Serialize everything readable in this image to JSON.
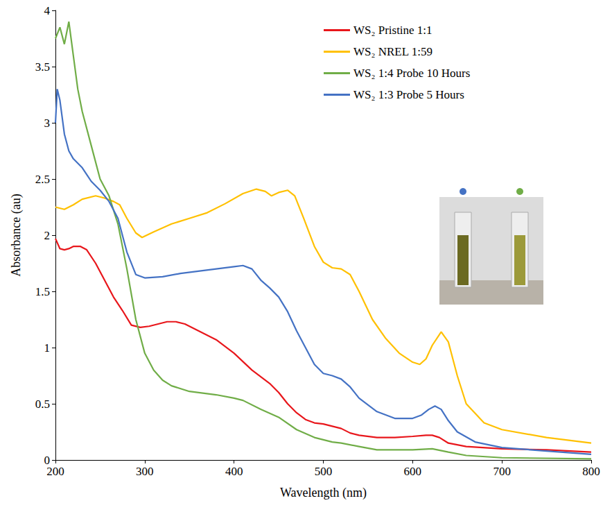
{
  "chart_data": {
    "type": "line",
    "x_label": "Wavelength (nm)",
    "y_label": "Absorbance (au)",
    "xlim": [
      200,
      800
    ],
    "xticks": [
      200,
      300,
      400,
      500,
      600,
      700,
      800
    ],
    "ylim": [
      0,
      4
    ],
    "yticks": [
      0,
      0.5,
      1,
      1.5,
      2,
      2.5,
      3,
      3.5,
      4
    ],
    "grid": false,
    "legend": "upper right",
    "series": [
      {
        "name": "WS₂ Pristine 1:1",
        "color": "#e8161b",
        "x": [
          200,
          205,
          210,
          215,
          220,
          228,
          235,
          245,
          255,
          265,
          275,
          285,
          295,
          305,
          315,
          325,
          335,
          345,
          360,
          380,
          400,
          420,
          440,
          450,
          460,
          470,
          480,
          490,
          500,
          510,
          520,
          530,
          540,
          560,
          580,
          600,
          615,
          622,
          630,
          640,
          660,
          700,
          750,
          800
        ],
        "values": [
          1.97,
          1.88,
          1.87,
          1.88,
          1.9,
          1.9,
          1.87,
          1.75,
          1.6,
          1.45,
          1.33,
          1.2,
          1.18,
          1.19,
          1.21,
          1.23,
          1.23,
          1.21,
          1.15,
          1.07,
          0.95,
          0.8,
          0.68,
          0.6,
          0.5,
          0.42,
          0.36,
          0.33,
          0.32,
          0.3,
          0.28,
          0.24,
          0.22,
          0.2,
          0.2,
          0.21,
          0.22,
          0.22,
          0.2,
          0.15,
          0.12,
          0.1,
          0.09,
          0.07
        ]
      },
      {
        "name": "WS₂ NREL 1:59",
        "color": "#ffc000",
        "x": [
          200,
          210,
          220,
          230,
          245,
          255,
          265,
          272,
          280,
          290,
          297,
          310,
          330,
          350,
          370,
          390,
          410,
          425,
          435,
          442,
          450,
          460,
          468,
          478,
          490,
          500,
          510,
          520,
          530,
          540,
          555,
          570,
          585,
          600,
          608,
          615,
          622,
          632,
          640,
          650,
          660,
          680,
          700,
          750,
          800
        ],
        "values": [
          2.25,
          2.23,
          2.27,
          2.32,
          2.35,
          2.33,
          2.3,
          2.27,
          2.15,
          2.02,
          1.98,
          2.03,
          2.1,
          2.15,
          2.2,
          2.28,
          2.37,
          2.41,
          2.39,
          2.35,
          2.38,
          2.4,
          2.35,
          2.15,
          1.9,
          1.76,
          1.71,
          1.7,
          1.65,
          1.5,
          1.25,
          1.08,
          0.95,
          0.87,
          0.85,
          0.9,
          1.02,
          1.14,
          1.05,
          0.75,
          0.5,
          0.33,
          0.27,
          0.2,
          0.15
        ]
      },
      {
        "name": "WS₂ 1:4 Probe 10 Hours",
        "color": "#70ad47",
        "x": [
          200,
          205,
          210,
          215,
          220,
          225,
          230,
          240,
          250,
          260,
          270,
          280,
          290,
          300,
          310,
          320,
          330,
          350,
          380,
          400,
          410,
          430,
          450,
          470,
          490,
          510,
          520,
          540,
          560,
          600,
          622,
          640,
          660,
          700,
          800
        ],
        "values": [
          3.75,
          3.85,
          3.7,
          3.9,
          3.6,
          3.3,
          3.1,
          2.8,
          2.5,
          2.35,
          2.1,
          1.7,
          1.25,
          0.95,
          0.8,
          0.71,
          0.66,
          0.61,
          0.58,
          0.55,
          0.53,
          0.45,
          0.38,
          0.27,
          0.2,
          0.16,
          0.15,
          0.12,
          0.09,
          0.09,
          0.1,
          0.07,
          0.04,
          0.02,
          0.01
        ]
      },
      {
        "name": "WS₂ 1:3 Probe 5 Hours",
        "color": "#4472c4",
        "x": [
          200,
          202,
          205,
          210,
          215,
          220,
          230,
          240,
          250,
          260,
          270,
          280,
          290,
          300,
          320,
          340,
          360,
          380,
          400,
          410,
          420,
          430,
          440,
          450,
          460,
          470,
          480,
          490,
          500,
          510,
          520,
          530,
          540,
          560,
          580,
          600,
          610,
          618,
          625,
          632,
          640,
          650,
          670,
          700,
          750,
          800
        ],
        "values": [
          3.0,
          3.3,
          3.2,
          2.9,
          2.75,
          2.68,
          2.6,
          2.48,
          2.4,
          2.3,
          2.15,
          1.85,
          1.65,
          1.62,
          1.63,
          1.66,
          1.68,
          1.7,
          1.72,
          1.73,
          1.7,
          1.6,
          1.53,
          1.45,
          1.32,
          1.15,
          1.0,
          0.85,
          0.77,
          0.75,
          0.72,
          0.65,
          0.55,
          0.43,
          0.37,
          0.37,
          0.4,
          0.45,
          0.48,
          0.45,
          0.35,
          0.25,
          0.16,
          0.11,
          0.08,
          0.05
        ]
      }
    ]
  }
}
